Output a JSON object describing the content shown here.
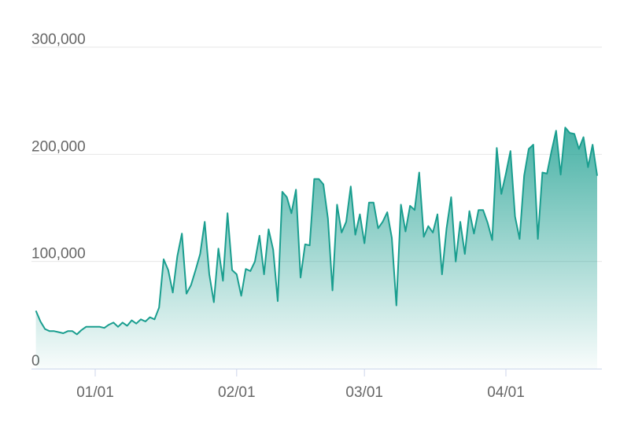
{
  "chart_data": {
    "type": "area",
    "categories": [
      "12/19",
      "12/20",
      "12/21",
      "12/22",
      "12/23",
      "12/24",
      "12/25",
      "12/26",
      "12/27",
      "12/28",
      "12/29",
      "12/30",
      "12/31",
      "01/01",
      "01/02",
      "01/03",
      "01/04",
      "01/05",
      "01/06",
      "01/07",
      "01/08",
      "01/09",
      "01/10",
      "01/11",
      "01/12",
      "01/13",
      "01/14",
      "01/15",
      "01/16",
      "01/17",
      "01/18",
      "01/19",
      "01/20",
      "01/21",
      "01/22",
      "01/23",
      "01/24",
      "01/25",
      "01/26",
      "01/27",
      "01/28",
      "01/29",
      "01/30",
      "01/31",
      "02/01",
      "02/02",
      "02/03",
      "02/04",
      "02/05",
      "02/06",
      "02/07",
      "02/08",
      "02/09",
      "02/10",
      "02/11",
      "02/12",
      "02/13",
      "02/14",
      "02/15",
      "02/16",
      "02/17",
      "02/18",
      "02/19",
      "02/20",
      "02/21",
      "02/22",
      "02/23",
      "02/24",
      "02/25",
      "02/26",
      "02/27",
      "02/28",
      "03/01",
      "03/02",
      "03/03",
      "03/04",
      "03/05",
      "03/06",
      "03/07",
      "03/08",
      "03/09",
      "03/10",
      "03/11",
      "03/12",
      "03/13",
      "03/14",
      "03/15",
      "03/16",
      "03/17",
      "03/18",
      "03/19",
      "03/20",
      "03/21",
      "03/22",
      "03/23",
      "03/24",
      "03/25",
      "03/26",
      "03/27",
      "03/28",
      "03/29",
      "03/30",
      "03/31",
      "04/01",
      "04/02",
      "04/03",
      "04/04",
      "04/05",
      "04/06",
      "04/07",
      "04/08",
      "04/09",
      "04/10",
      "04/11",
      "04/12",
      "04/13",
      "04/14",
      "04/15",
      "04/16",
      "04/17",
      "04/18",
      "04/19",
      "04/20",
      "04/21"
    ],
    "values": [
      54000,
      44000,
      37000,
      35000,
      35000,
      34000,
      33000,
      35000,
      35000,
      32000,
      36000,
      39000,
      39000,
      39000,
      39000,
      38000,
      41000,
      43000,
      39000,
      43000,
      40000,
      45000,
      42000,
      46000,
      44000,
      48000,
      46000,
      57000,
      102000,
      92000,
      71000,
      105000,
      126000,
      70000,
      78000,
      92000,
      107000,
      137000,
      88000,
      62000,
      112000,
      82000,
      145000,
      92000,
      88000,
      68000,
      93000,
      91000,
      100000,
      124000,
      88000,
      130000,
      111000,
      63000,
      165000,
      160000,
      145000,
      167000,
      85000,
      116000,
      115000,
      177000,
      177000,
      172000,
      140000,
      73000,
      153000,
      127000,
      137000,
      170000,
      125000,
      144000,
      117000,
      155000,
      155000,
      131000,
      137000,
      146000,
      122000,
      59000,
      153000,
      128000,
      152000,
      148000,
      183000,
      123000,
      133000,
      127000,
      144000,
      88000,
      131000,
      160000,
      100000,
      137000,
      107000,
      147000,
      126000,
      148000,
      148000,
      136000,
      120000,
      206000,
      163000,
      182000,
      203000,
      142000,
      121000,
      180000,
      205000,
      209000,
      121000,
      183000,
      182000,
      203000,
      222000,
      181000,
      225000,
      220000,
      219000,
      205000,
      216000,
      188000,
      209000,
      180000
    ],
    "color": "#1a9e8f",
    "xticks": [
      "01/01",
      "02/01",
      "03/01",
      "04/01"
    ],
    "ylim": [
      0,
      300000
    ],
    "yticks": [
      0,
      {
        "value": 100000,
        "label": "100,000"
      },
      {
        "value": 200000,
        "label": "200,000"
      },
      {
        "value": 300000,
        "label": "300,000"
      }
    ],
    "grid": true
  }
}
